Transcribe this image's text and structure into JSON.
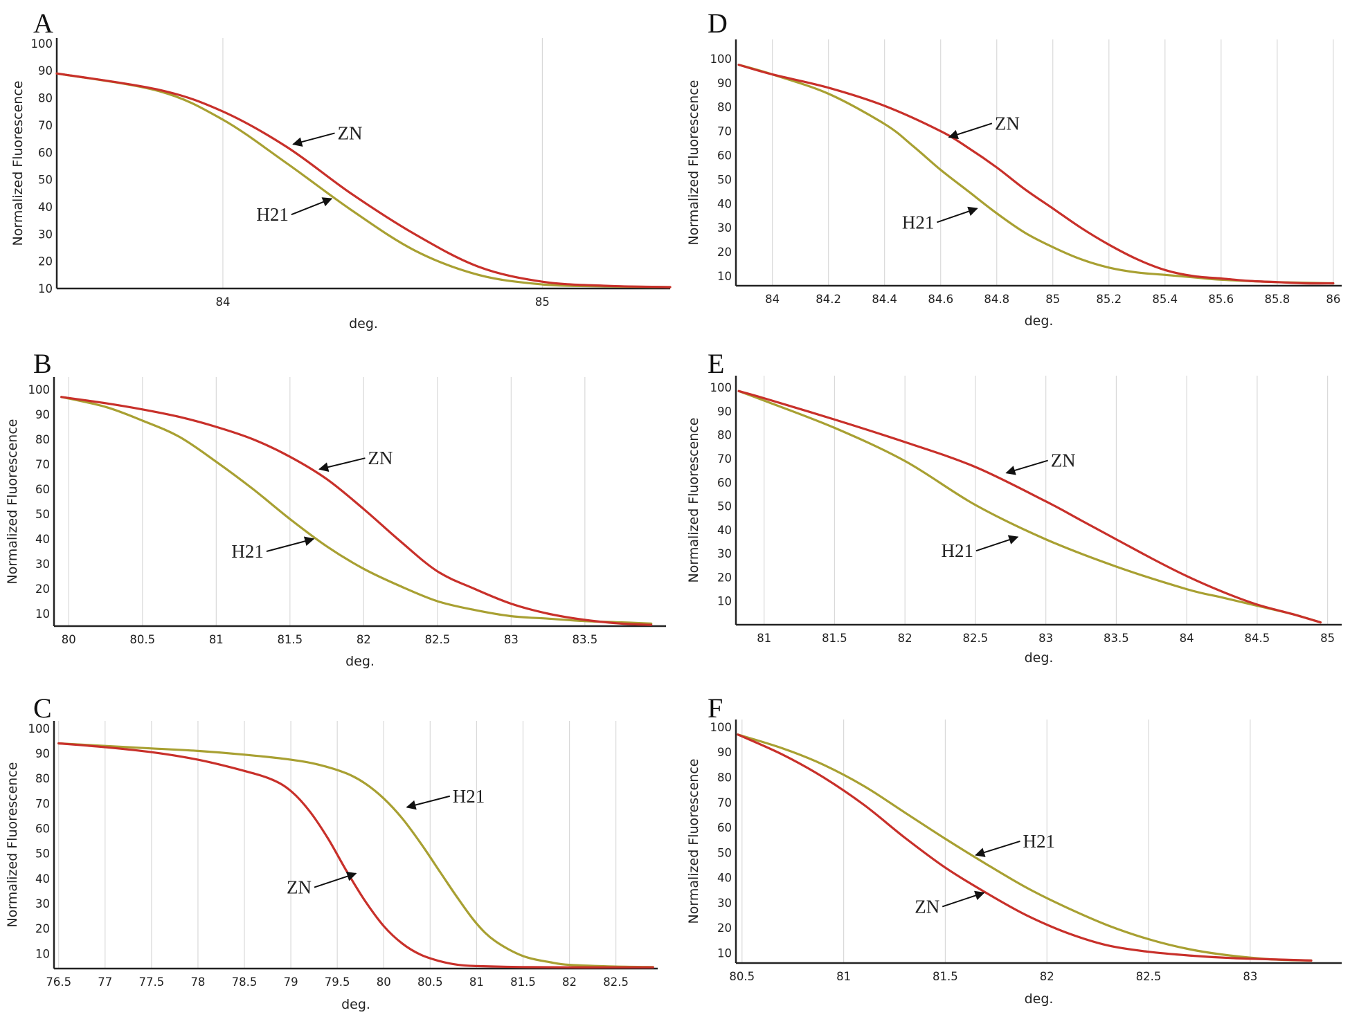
{
  "colors": {
    "ZN": "#c8302a",
    "H21": "#a8a032",
    "arrow": "#111111"
  },
  "chart_data": [
    {
      "panel": "A",
      "type": "line",
      "xlabel": "deg.",
      "ylabel": "Normalized Fluorescence",
      "xlim": [
        83.48,
        85.4
      ],
      "ylim": [
        10,
        102
      ],
      "xticks": [
        84,
        85
      ],
      "yticks": [
        10,
        20,
        30,
        40,
        50,
        60,
        70,
        80,
        90,
        100
      ],
      "series": [
        {
          "name": "ZN",
          "x": [
            83.48,
            83.8,
            84.0,
            84.2,
            84.4,
            84.6,
            84.8,
            85.0,
            85.2,
            85.4
          ],
          "y": [
            89,
            83,
            75,
            62,
            45,
            30,
            18,
            12.5,
            11,
            10.5
          ]
        },
        {
          "name": "H21",
          "x": [
            83.48,
            83.8,
            84.0,
            84.2,
            84.4,
            84.6,
            84.8,
            85.0,
            85.2,
            85.4
          ],
          "y": [
            89,
            82.5,
            72,
            56,
            39,
            24,
            15,
            11.5,
            10.8,
            10.5
          ]
        }
      ],
      "annotations": [
        {
          "label": "ZN",
          "x": 84.22,
          "y": 63
        },
        {
          "label": "H21",
          "x": 84.34,
          "y": 43
        }
      ]
    },
    {
      "panel": "B",
      "type": "line",
      "xlabel": "deg.",
      "ylabel": "Normalized Fluorescence",
      "xlim": [
        79.9,
        84.05
      ],
      "ylim": [
        5,
        105
      ],
      "xticks": [
        80,
        80.5,
        81,
        81.5,
        82,
        82.5,
        83,
        83.5
      ],
      "yticks": [
        10,
        20,
        30,
        40,
        50,
        60,
        70,
        80,
        90,
        100
      ],
      "series": [
        {
          "name": "ZN",
          "x": [
            79.95,
            80.25,
            80.5,
            80.75,
            81.0,
            81.25,
            81.5,
            81.75,
            82.0,
            82.25,
            82.5,
            82.75,
            83.0,
            83.25,
            83.5,
            83.75,
            83.95
          ],
          "y": [
            97,
            94.5,
            92,
            89,
            85,
            80,
            73,
            64,
            52,
            39,
            27,
            20,
            14,
            10,
            7.5,
            6,
            5.5
          ]
        },
        {
          "name": "H21",
          "x": [
            79.95,
            80.25,
            80.5,
            80.75,
            81.0,
            81.25,
            81.5,
            81.75,
            82.0,
            82.25,
            82.5,
            82.75,
            83.0,
            83.25,
            83.5,
            83.75,
            83.95
          ],
          "y": [
            97,
            93,
            87.5,
            81,
            71,
            60,
            48,
            37,
            28,
            21,
            15,
            11.5,
            9,
            8,
            7,
            6.5,
            6
          ]
        }
      ],
      "annotations": [
        {
          "label": "ZN",
          "x": 81.7,
          "y": 68
        },
        {
          "label": "H21",
          "x": 81.66,
          "y": 40
        }
      ]
    },
    {
      "panel": "C",
      "type": "line",
      "xlabel": "deg.",
      "ylabel": "Normalized Fluorescence",
      "xlim": [
        76.45,
        82.95
      ],
      "ylim": [
        4,
        103
      ],
      "xticks": [
        76.5,
        77,
        77.5,
        78,
        78.5,
        79,
        79.5,
        80,
        80.5,
        81,
        81.5,
        82,
        82.5
      ],
      "yticks": [
        10,
        20,
        30,
        40,
        50,
        60,
        70,
        80,
        90,
        100
      ],
      "series": [
        {
          "name": "ZN",
          "x": [
            76.5,
            77.0,
            77.5,
            78.0,
            78.5,
            78.8,
            79.0,
            79.2,
            79.4,
            79.6,
            79.8,
            80.0,
            80.2,
            80.4,
            80.6,
            80.8,
            81.0,
            81.5,
            82.0,
            82.5,
            82.9
          ],
          "y": [
            94,
            92.5,
            90.5,
            87.5,
            83,
            79.5,
            75,
            67,
            56,
            43,
            31,
            21,
            14,
            9.5,
            7,
            5.5,
            5,
            4.6,
            4.5,
            4.5,
            4.5
          ]
        },
        {
          "name": "H21",
          "x": [
            76.5,
            77.0,
            77.5,
            78.0,
            78.5,
            79.0,
            79.3,
            79.6,
            79.8,
            80.0,
            80.2,
            80.4,
            80.6,
            80.8,
            81.0,
            81.2,
            81.5,
            81.8,
            82.0,
            82.5,
            82.9
          ],
          "y": [
            94,
            93,
            92,
            91,
            89.5,
            87.5,
            85.5,
            82,
            78,
            72,
            64,
            54,
            43,
            32,
            22,
            15,
            9,
            6.5,
            5.5,
            4.8,
            4.6
          ]
        }
      ],
      "annotations": [
        {
          "label": "H21",
          "x": 80.25,
          "y": 68.5
        },
        {
          "label": "ZN",
          "x": 79.7,
          "y": 42
        }
      ]
    },
    {
      "panel": "D",
      "type": "line",
      "xlabel": "deg.",
      "ylabel": "Normalized Fluorescence",
      "xlim": [
        83.87,
        86.03
      ],
      "ylim": [
        6,
        108
      ],
      "xticks": [
        84,
        84.2,
        84.4,
        84.6,
        84.8,
        85,
        85.2,
        85.4,
        85.6,
        85.8,
        86
      ],
      "yticks": [
        10,
        20,
        30,
        40,
        50,
        60,
        70,
        80,
        90,
        100
      ],
      "series": [
        {
          "name": "ZN",
          "x": [
            83.88,
            84.0,
            84.2,
            84.4,
            84.6,
            84.7,
            84.8,
            84.9,
            85.0,
            85.1,
            85.2,
            85.3,
            85.4,
            85.5,
            85.6,
            85.7,
            85.8,
            85.9,
            86.0
          ],
          "y": [
            97.5,
            93.5,
            88,
            80.5,
            70,
            63,
            55,
            46,
            38,
            30,
            23,
            17,
            12.5,
            10,
            9,
            8,
            7.5,
            7,
            7
          ]
        },
        {
          "name": "H21",
          "x": [
            83.88,
            84.0,
            84.2,
            84.4,
            84.5,
            84.6,
            84.7,
            84.8,
            84.9,
            85.0,
            85.1,
            85.2,
            85.3,
            85.4,
            85.5,
            85.6,
            85.8,
            86.0
          ],
          "y": [
            97.5,
            93.5,
            85.5,
            73,
            64,
            54,
            45,
            36,
            28,
            22,
            17,
            13.5,
            11.5,
            10.5,
            9.5,
            8.5,
            7.5,
            7
          ]
        }
      ],
      "annotations": [
        {
          "label": "ZN",
          "x": 84.63,
          "y": 67.5
        },
        {
          "label": "H21",
          "x": 84.73,
          "y": 38
        }
      ]
    },
    {
      "panel": "E",
      "type": "line",
      "xlabel": "deg.",
      "ylabel": "Normalized Fluorescence",
      "xlim": [
        80.8,
        85.1
      ],
      "ylim": [
        0,
        105
      ],
      "xticks": [
        81,
        81.5,
        82,
        82.5,
        83,
        83.5,
        84,
        84.5,
        85
      ],
      "yticks": [
        10,
        20,
        30,
        40,
        50,
        60,
        70,
        80,
        90,
        100
      ],
      "series": [
        {
          "name": "ZN",
          "x": [
            80.82,
            81.0,
            81.5,
            82.0,
            82.5,
            83.0,
            83.25,
            83.5,
            83.75,
            84.0,
            84.25,
            84.5,
            84.75,
            84.95
          ],
          "y": [
            98.5,
            95.5,
            86.5,
            77,
            66.5,
            52,
            44,
            36,
            28,
            20.5,
            14,
            8.5,
            4.5,
            1
          ]
        },
        {
          "name": "H21",
          "x": [
            80.82,
            81.0,
            81.5,
            82.0,
            82.5,
            83.0,
            83.5,
            84.0,
            84.25,
            84.5,
            84.75,
            84.95
          ],
          "y": [
            98.5,
            94.5,
            83,
            69,
            50.5,
            36,
            24.5,
            15,
            11.5,
            8,
            4.5,
            1
          ]
        }
      ],
      "annotations": [
        {
          "label": "ZN",
          "x": 82.72,
          "y": 64
        },
        {
          "label": "H21",
          "x": 82.8,
          "y": 37
        }
      ]
    },
    {
      "panel": "F",
      "type": "line",
      "xlabel": "deg.",
      "ylabel": "Normalized Fluorescence",
      "xlim": [
        80.47,
        83.45
      ],
      "ylim": [
        6,
        103
      ],
      "xticks": [
        80.5,
        81,
        81.5,
        82,
        82.5,
        83
      ],
      "yticks": [
        10,
        20,
        30,
        40,
        50,
        60,
        70,
        80,
        90,
        100
      ],
      "series": [
        {
          "name": "ZN",
          "x": [
            80.48,
            80.7,
            80.9,
            81.1,
            81.3,
            81.5,
            81.7,
            81.9,
            82.1,
            82.3,
            82.5,
            82.7,
            82.9,
            83.1,
            83.3
          ],
          "y": [
            97,
            89,
            80,
            69,
            56,
            44,
            34,
            25,
            18,
            13,
            10.5,
            9,
            8,
            7.5,
            7
          ]
        },
        {
          "name": "H21",
          "x": [
            80.48,
            80.7,
            80.9,
            81.1,
            81.3,
            81.5,
            81.7,
            81.9,
            82.1,
            82.3,
            82.5,
            82.7,
            82.9,
            83.1,
            83.3
          ],
          "y": [
            97,
            91.5,
            85,
            76.5,
            66,
            55.5,
            45.5,
            36,
            28,
            21,
            15.5,
            11.5,
            9,
            7.5,
            7
          ]
        }
      ],
      "annotations": [
        {
          "label": "H21",
          "x": 81.65,
          "y": 49
        },
        {
          "label": "ZN",
          "x": 81.69,
          "y": 34
        }
      ]
    }
  ]
}
